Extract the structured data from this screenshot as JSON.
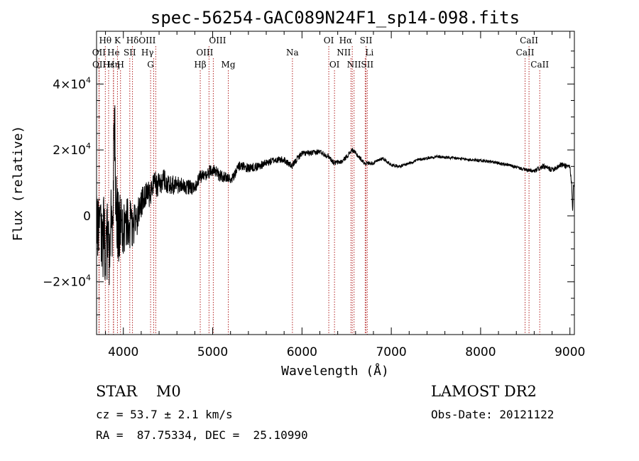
{
  "chart_data": {
    "type": "line",
    "title": "spec-56254-GAC089N24F1_sp14-098.fits",
    "xlabel": "Wavelength (Å)",
    "ylabel": "Flux (relative)",
    "xlim": [
      3700,
      9050
    ],
    "ylim": [
      -36000,
      56000
    ],
    "x_ticks": [
      4000,
      5000,
      6000,
      7000,
      8000,
      9000
    ],
    "x_tick_labels": [
      "4000",
      "5000",
      "6000",
      "7000",
      "8000",
      "9000"
    ],
    "y_ticks": [
      {
        "value": -20000,
        "mantissa": "−2×10",
        "exp": "4"
      },
      {
        "value": 0,
        "mantissa": "0",
        "exp": ""
      },
      {
        "value": 20000,
        "mantissa": "2×10",
        "exp": "4"
      },
      {
        "value": 40000,
        "mantissa": "4×10",
        "exp": "4"
      }
    ],
    "grid": false,
    "series": [
      {
        "name": "flux",
        "color": "#000000",
        "noise_profile": [
          [
            3700,
            13000
          ],
          [
            3900,
            13000
          ],
          [
            4000,
            9000
          ],
          [
            4100,
            7000
          ],
          [
            4200,
            4500
          ],
          [
            4400,
            3500
          ],
          [
            4600,
            3000
          ],
          [
            4800,
            2000
          ],
          [
            5000,
            2000
          ],
          [
            5200,
            1600
          ],
          [
            5600,
            1200
          ],
          [
            6000,
            900
          ],
          [
            6600,
            700
          ],
          [
            7000,
            450
          ],
          [
            8500,
            500
          ],
          [
            8700,
            800
          ],
          [
            9050,
            900
          ]
        ],
        "points": [
          [
            3700,
            -3000
          ],
          [
            3750,
            -5000
          ],
          [
            3800,
            -8000
          ],
          [
            3850,
            -9000
          ],
          [
            3880,
            2000
          ],
          [
            3900,
            26000
          ],
          [
            3920,
            5000
          ],
          [
            3950,
            -6000
          ],
          [
            3970,
            -1000
          ],
          [
            4000,
            -3000
          ],
          [
            4050,
            -2000
          ],
          [
            4100,
            -3000
          ],
          [
            4150,
            -1000
          ],
          [
            4200,
            4000
          ],
          [
            4250,
            6000
          ],
          [
            4300,
            6500
          ],
          [
            4340,
            11000
          ],
          [
            4380,
            9000
          ],
          [
            4450,
            11000
          ],
          [
            4500,
            10000
          ],
          [
            4600,
            9000
          ],
          [
            4700,
            9000
          ],
          [
            4800,
            8000
          ],
          [
            4850,
            12000
          ],
          [
            4900,
            12000
          ],
          [
            5000,
            14000
          ],
          [
            5100,
            12000
          ],
          [
            5200,
            11000
          ],
          [
            5300,
            15000
          ],
          [
            5400,
            14500
          ],
          [
            5500,
            15000
          ],
          [
            5600,
            16000
          ],
          [
            5700,
            17000
          ],
          [
            5800,
            17000
          ],
          [
            5890,
            15000
          ],
          [
            5950,
            17500
          ],
          [
            6000,
            19000
          ],
          [
            6100,
            19000
          ],
          [
            6200,
            19500
          ],
          [
            6300,
            18000
          ],
          [
            6360,
            16000
          ],
          [
            6450,
            16500
          ],
          [
            6500,
            18000
          ],
          [
            6563,
            20000
          ],
          [
            6600,
            19000
          ],
          [
            6700,
            16000
          ],
          [
            6800,
            16000
          ],
          [
            6900,
            17500
          ],
          [
            7000,
            15500
          ],
          [
            7100,
            15000
          ],
          [
            7200,
            16000
          ],
          [
            7300,
            17000
          ],
          [
            7500,
            18000
          ],
          [
            7700,
            17500
          ],
          [
            7900,
            17000
          ],
          [
            8100,
            16500
          ],
          [
            8300,
            15500
          ],
          [
            8500,
            14000
          ],
          [
            8600,
            13500
          ],
          [
            8700,
            15000
          ],
          [
            8800,
            14000
          ],
          [
            8900,
            15500
          ],
          [
            9000,
            15000
          ],
          [
            9020,
            9000
          ],
          [
            9030,
            1000
          ],
          [
            9040,
            9000
          ]
        ]
      }
    ],
    "lines": [
      {
        "label": "Hθ",
        "x": 3798,
        "row": 0,
        "ha": "middle"
      },
      {
        "label": "K",
        "x": 3934,
        "row": 0,
        "ha": "middle"
      },
      {
        "label": "Hδ",
        "x": 4102,
        "row": 0,
        "ha": "middle"
      },
      {
        "label": "OIII",
        "x": 4363,
        "row": 0,
        "ha": "end"
      },
      {
        "label": "OIII",
        "x": 4959,
        "row": 0,
        "ha": "start"
      },
      {
        "label": "OI",
        "x": 6300,
        "row": 0,
        "ha": "middle"
      },
      {
        "label": "Hα",
        "x": 6563,
        "row": 0,
        "ha": "end"
      },
      {
        "label": "SII",
        "x": 6717,
        "row": 0,
        "ha": "middle"
      },
      {
        "label": "CaII",
        "x": 8542,
        "row": 0,
        "ha": "middle"
      },
      {
        "label": "OII",
        "x": 3727,
        "row": 1,
        "ha": "middle"
      },
      {
        "label": "He",
        "x": 3889,
        "row": 1,
        "ha": "middle"
      },
      {
        "label": "SII",
        "x": 4072,
        "row": 1,
        "ha": "middle"
      },
      {
        "label": "Hγ",
        "x": 4340,
        "row": 1,
        "ha": "end"
      },
      {
        "label": "OIII",
        "x": 5007,
        "row": 1,
        "ha": "end"
      },
      {
        "label": "Na",
        "x": 5893,
        "row": 1,
        "ha": "middle"
      },
      {
        "label": "NII",
        "x": 6548,
        "row": 1,
        "ha": "end"
      },
      {
        "label": "Li",
        "x": 6708,
        "row": 1,
        "ha": "start"
      },
      {
        "label": "CaII",
        "x": 8498,
        "row": 1,
        "ha": "middle"
      },
      {
        "label": "OII",
        "x": 3729,
        "row": 2,
        "ha": "middle"
      },
      {
        "label": "Hε",
        "x": 3835,
        "row": 2,
        "ha": "middle"
      },
      {
        "label": "Hη",
        "x": 3890,
        "row": 2,
        "ha": "middle"
      },
      {
        "label": "H",
        "x": 3968,
        "row": 2,
        "ha": "middle"
      },
      {
        "label": "G",
        "x": 4305,
        "row": 2,
        "ha": "middle"
      },
      {
        "label": "Hβ",
        "x": 4861,
        "row": 2,
        "ha": "middle"
      },
      {
        "label": "Mg",
        "x": 5175,
        "row": 2,
        "ha": "middle"
      },
      {
        "label": "OI",
        "x": 6364,
        "row": 2,
        "ha": "middle"
      },
      {
        "label": "NII",
        "x": 6583,
        "row": 2,
        "ha": "middle"
      },
      {
        "label": "SII",
        "x": 6731,
        "row": 2,
        "ha": "middle"
      },
      {
        "label": "CaII",
        "x": 8662,
        "row": 2,
        "ha": "middle"
      }
    ],
    "line_color": "#b22222"
  },
  "info": {
    "class_line": "STAR    M0",
    "cz_line": "cz = 53.7 ± 2.1 km/s",
    "radec_line": "RA =  87.75334, DEC =  25.10990",
    "survey": "LAMOST DR2",
    "obs_date": "Obs-Date: 20121122"
  }
}
